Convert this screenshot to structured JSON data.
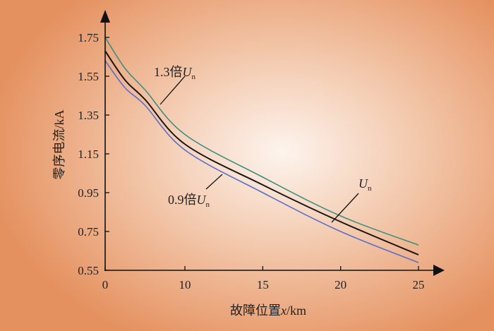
{
  "chart_data": {
    "type": "line",
    "title": "",
    "xlabel": "故障位置x/km",
    "xlabel_parts": {
      "prefix": "故障位置",
      "var": "x",
      "suffix": "/km"
    },
    "ylabel": "零序电流/kA",
    "xlim": [
      0,
      25
    ],
    "ylim": [
      0.55,
      1.75
    ],
    "xticks": [
      "0",
      "10",
      "15",
      "20",
      "25"
    ],
    "yticks": [
      "0.55",
      "0.75",
      "0.95",
      "1.15",
      "1.35",
      "1.55",
      "1.75"
    ],
    "grid": false,
    "legend": "none",
    "x": [
      0,
      2.5,
      5,
      10,
      15,
      20,
      25
    ],
    "series": [
      {
        "name": "1.3倍Un",
        "label_prefix": "1.3倍",
        "color": "#3f8f80",
        "values": [
          1.75,
          1.59,
          1.48,
          1.25,
          1.03,
          0.83,
          0.68
        ]
      },
      {
        "name": "Un",
        "label_prefix": "",
        "color": "#1a1414",
        "values": [
          1.68,
          1.53,
          1.43,
          1.2,
          0.99,
          0.8,
          0.63
        ]
      },
      {
        "name": "0.9倍Un",
        "label_prefix": "0.9倍",
        "color": "#5a6fc8",
        "values": [
          1.63,
          1.49,
          1.4,
          1.17,
          0.95,
          0.75,
          0.59
        ]
      }
    ]
  }
}
